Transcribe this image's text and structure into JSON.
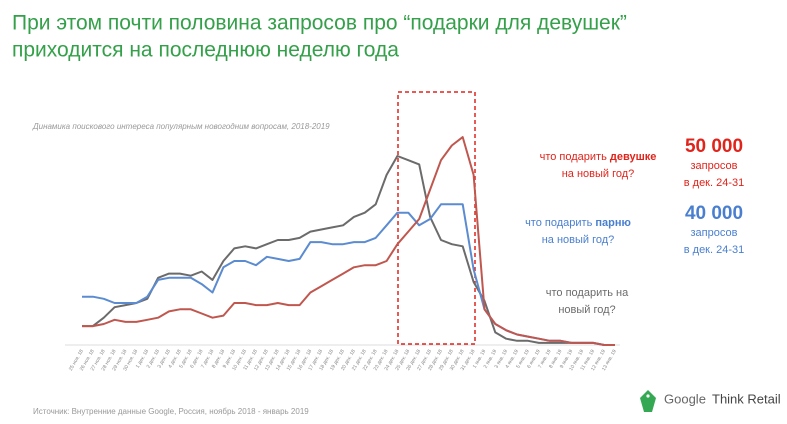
{
  "title": {
    "line1": "При этом почти половина запросов про “подарки для девушек”",
    "line2": "приходится на последнюю неделю года"
  },
  "chart_data": {
    "type": "line",
    "subtitle": "Динамика поискового интереса популярным новогодним вопросам, 2018-2019",
    "categories": [
      "25 ноя. 18",
      "26 ноя. 18",
      "27 ноя. 18",
      "28 ноя. 18",
      "29 ноя. 18",
      "30 ноя. 18",
      "1 дек. 18",
      "2 дек. 18",
      "3 дек. 18",
      "4 дек. 18",
      "5 дек. 18",
      "6 дек. 18",
      "7 дек. 18",
      "8 дек. 18",
      "9 дек. 18",
      "10 дек. 18",
      "11 дек. 18",
      "12 дек. 18",
      "13 дек. 18",
      "14 дек. 18",
      "15 дек. 18",
      "16 дек. 18",
      "17 дек. 18",
      "18 дек. 18",
      "19 дек. 18",
      "20 дек. 18",
      "21 дек. 18",
      "22 дек. 18",
      "23 дек. 18",
      "24 дек. 18",
      "25 дек. 18",
      "26 дек. 18",
      "27 дек. 18",
      "28 дек. 18",
      "29 дек. 18",
      "30 дек. 18",
      "31 дек. 18",
      "1 янв. 19",
      "2 янв. 19",
      "3 янв. 19",
      "4 янв. 19",
      "5 янв. 19",
      "6 янв. 19",
      "7 янв. 19",
      "8 янв. 19",
      "9 янв. 19",
      "10 янв. 19",
      "11 янв. 19",
      "12 янв. 19",
      "13 янв. 19"
    ],
    "series": [
      {
        "color": "#6b6b6b",
        "values": [
          9,
          9,
          13,
          18,
          19,
          20,
          22,
          32,
          34,
          34,
          33,
          35,
          31,
          40,
          46,
          47,
          46,
          48,
          50,
          50,
          51,
          54,
          55,
          56,
          57,
          61,
          63,
          67,
          81,
          90,
          88,
          86,
          61,
          50,
          48,
          47,
          30,
          21,
          6,
          3,
          2,
          2,
          1,
          1,
          1,
          1,
          1,
          1,
          0,
          0
        ]
      },
      {
        "color": "#5b8bd0",
        "values": [
          23,
          23,
          22,
          20,
          20,
          20,
          23,
          31,
          32,
          32,
          32,
          29,
          25,
          37,
          40,
          40,
          38,
          42,
          41,
          40,
          41,
          49,
          49,
          48,
          48,
          49,
          49,
          51,
          57,
          63,
          63,
          57,
          60,
          67,
          67,
          67,
          36,
          17,
          10,
          7,
          5,
          4,
          3,
          2,
          2,
          1,
          1,
          1,
          0,
          0
        ]
      },
      {
        "color": "#c0574f",
        "values": [
          9,
          9,
          10,
          12,
          11,
          11,
          12,
          13,
          16,
          17,
          17,
          15,
          13,
          14,
          20,
          20,
          19,
          19,
          20,
          19,
          19,
          25,
          28,
          31,
          34,
          37,
          38,
          38,
          40,
          48,
          54,
          60,
          74,
          88,
          95,
          99,
          81,
          17,
          10,
          7,
          5,
          4,
          3,
          2,
          2,
          1,
          1,
          1,
          0,
          0
        ]
      }
    ],
    "ylim": [
      0,
      100
    ]
  },
  "callouts": [
    {
      "color": "#e0241b",
      "text": "что подарить",
      "highlight": "девушке",
      "line2": "на новый год?",
      "count": "50 000",
      "caption1": "запросов",
      "caption2": "в дек. 24-31"
    },
    {
      "color": "#4a7fd0",
      "text": "что подарить",
      "highlight": "парню",
      "line2": "на новый год?",
      "count": "40 000",
      "caption1": "запросов",
      "caption2": "в дек. 24-31"
    },
    {
      "color": "#6b6b6b",
      "text": "что подарить на",
      "line2": "новый год?"
    }
  ],
  "source": "Источник: Внутренние данные Google, Россия, ноябрь 2018 - январь 2019",
  "logo": {
    "brand": "Google",
    "product": "Think Retail"
  }
}
